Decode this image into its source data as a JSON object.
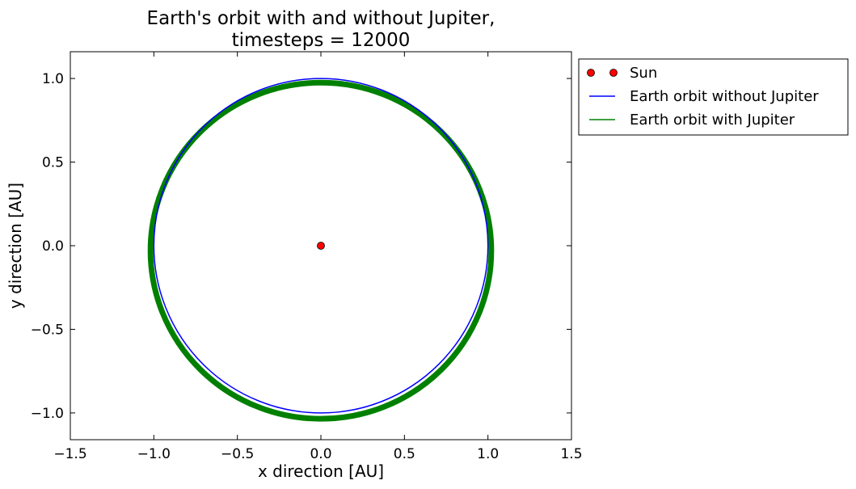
{
  "chart_data": {
    "type": "line",
    "title_lines": [
      "Earth's orbit with and without Jupiter,",
      "timesteps = 12000"
    ],
    "xlabel": "x direction [AU]",
    "ylabel": "y direction [AU]",
    "xlim": [
      -1.5,
      1.5
    ],
    "ylim": [
      -1.16,
      1.16
    ],
    "x_ticks": [
      -1.5,
      -1.0,
      -0.5,
      0.0,
      0.5,
      1.0,
      1.5
    ],
    "x_tick_labels": [
      "−1.5",
      "−1.0",
      "−0.5",
      "0.0",
      "0.5",
      "1.0",
      "1.5"
    ],
    "y_ticks": [
      -1.0,
      -0.5,
      0.0,
      0.5,
      1.0
    ],
    "y_tick_labels": [
      "−1.0",
      "−0.5",
      "0.0",
      "0.5",
      "1.0"
    ],
    "grid": false,
    "legend_placement": "outside-top-right",
    "series": [
      {
        "name": "Sun",
        "kind": "marker",
        "color": "#ff0000",
        "x": [
          0.0
        ],
        "y": [
          0.0
        ]
      },
      {
        "name": "Earth orbit without Jupiter",
        "kind": "ellipse",
        "color": "#0000ff",
        "center": [
          0.0,
          0.0
        ],
        "radius_x": 1.0,
        "radius_y": 1.0,
        "line_width": 1.5
      },
      {
        "name": "Earth orbit with Jupiter",
        "kind": "ellipse",
        "color": "#008000",
        "center": [
          0.0,
          -0.03
        ],
        "radius_x": 1.02,
        "radius_y": 1.005,
        "line_width": 7
      }
    ]
  }
}
